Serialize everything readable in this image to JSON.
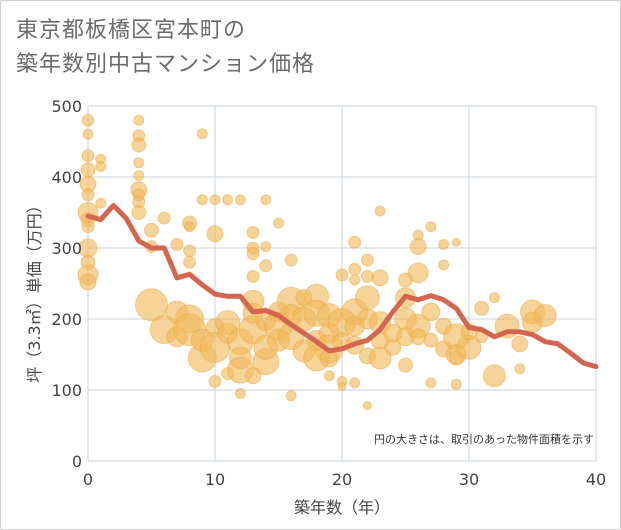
{
  "chart_data": {
    "type": "scatter",
    "title_lines": [
      "東京都板橋区宮本町の",
      "築年数別中古マンション価格"
    ],
    "xlabel": "築年数（年）",
    "ylabel": "坪（3.3㎡）単価（万円）",
    "annotation": "円の大きさは、取引のあった物件面積を示す",
    "xlim": [
      0,
      40
    ],
    "ylim": [
      0,
      500
    ],
    "x_ticks": [
      0,
      10,
      20,
      30,
      40
    ],
    "y_ticks": [
      0,
      100,
      200,
      300,
      400,
      500
    ],
    "grid": true,
    "colors": {
      "bubble": "#f0b85a",
      "bubble_stroke": "#e9a93f",
      "line": "#d4654f",
      "grid": "#c8d3de",
      "axis_text": "#444444"
    },
    "series": [
      {
        "kind": "bubble",
        "points": [
          [
            0,
            480,
            6
          ],
          [
            0,
            460,
            5
          ],
          [
            0,
            430,
            6
          ],
          [
            0,
            410,
            7
          ],
          [
            0,
            390,
            8
          ],
          [
            0,
            375,
            6
          ],
          [
            0,
            350,
            10
          ],
          [
            0,
            340,
            7
          ],
          [
            0,
            330,
            6
          ],
          [
            0,
            300,
            9
          ],
          [
            0,
            280,
            7
          ],
          [
            0,
            262,
            10
          ],
          [
            0,
            252,
            8
          ],
          [
            1,
            425,
            5
          ],
          [
            1,
            415,
            5
          ],
          [
            1,
            363,
            5
          ],
          [
            4,
            480,
            5
          ],
          [
            4,
            458,
            6
          ],
          [
            4,
            445,
            7
          ],
          [
            4,
            420,
            5
          ],
          [
            4,
            402,
            5
          ],
          [
            4,
            382,
            8
          ],
          [
            4,
            375,
            6
          ],
          [
            4,
            365,
            6
          ],
          [
            4,
            350,
            7
          ],
          [
            5,
            325,
            7
          ],
          [
            5,
            302,
            6
          ],
          [
            6,
            342,
            6
          ],
          [
            7,
            305,
            6
          ],
          [
            8,
            335,
            7
          ],
          [
            8,
            330,
            5
          ],
          [
            8,
            296,
            6
          ],
          [
            8,
            280,
            6
          ],
          [
            9,
            461,
            5
          ],
          [
            9,
            368,
            5
          ],
          [
            10,
            368,
            5
          ],
          [
            10,
            320,
            8
          ],
          [
            11,
            368,
            5
          ],
          [
            12,
            368,
            5
          ],
          [
            14,
            368,
            5
          ],
          [
            13,
            322,
            6
          ],
          [
            13,
            300,
            6
          ],
          [
            13,
            292,
            6
          ],
          [
            14,
            302,
            5
          ],
          [
            14,
            275,
            6
          ],
          [
            13,
            260,
            6
          ],
          [
            15,
            335,
            5
          ],
          [
            16,
            283,
            6
          ],
          [
            21,
            308,
            6
          ],
          [
            22,
            283,
            6
          ],
          [
            23,
            352,
            5
          ],
          [
            21,
            270,
            6
          ],
          [
            22,
            260,
            6
          ],
          [
            21,
            255,
            5
          ],
          [
            20,
            262,
            6
          ],
          [
            23,
            258,
            8
          ],
          [
            26,
            318,
            5
          ],
          [
            27,
            330,
            5
          ],
          [
            26,
            302,
            8
          ],
          [
            28,
            305,
            5
          ],
          [
            28,
            276,
            5
          ],
          [
            29,
            308,
            4
          ],
          [
            26,
            265,
            10
          ],
          [
            25,
            255,
            7
          ],
          [
            5,
            220,
            16
          ],
          [
            6,
            185,
            14
          ],
          [
            7,
            210,
            11
          ],
          [
            7,
            175,
            10
          ],
          [
            8,
            200,
            14
          ],
          [
            8,
            185,
            16
          ],
          [
            9,
            145,
            14
          ],
          [
            9,
            170,
            11
          ],
          [
            10,
            188,
            9
          ],
          [
            10,
            160,
            15
          ],
          [
            11,
            195,
            12
          ],
          [
            11,
            180,
            10
          ],
          [
            12,
            168,
            13
          ],
          [
            12,
            145,
            11
          ],
          [
            12,
            128,
            13
          ],
          [
            13,
            185,
            14
          ],
          [
            13,
            225,
            11
          ],
          [
            13,
            208,
            10
          ],
          [
            14,
            140,
            13
          ],
          [
            14,
            160,
            12
          ],
          [
            14,
            198,
            10
          ],
          [
            15,
            190,
            14
          ],
          [
            15,
            170,
            11
          ],
          [
            15,
            210,
            10
          ],
          [
            16,
            225,
            14
          ],
          [
            16,
            205,
            11
          ],
          [
            16,
            175,
            13
          ],
          [
            17,
            200,
            12
          ],
          [
            17,
            155,
            11
          ],
          [
            17,
            230,
            8
          ],
          [
            18,
            232,
            12
          ],
          [
            18,
            208,
            13
          ],
          [
            18,
            170,
            10
          ],
          [
            18,
            145,
            13
          ],
          [
            19,
            205,
            12
          ],
          [
            19,
            180,
            10
          ],
          [
            19,
            158,
            14
          ],
          [
            19,
            145,
            9
          ],
          [
            20,
            195,
            14
          ],
          [
            20,
            168,
            9
          ],
          [
            21,
            210,
            13
          ],
          [
            21,
            190,
            10
          ],
          [
            21,
            163,
            9
          ],
          [
            22,
            230,
            12
          ],
          [
            22,
            200,
            10
          ],
          [
            22,
            148,
            8
          ],
          [
            23,
            195,
            11
          ],
          [
            23,
            170,
            9
          ],
          [
            23,
            145,
            11
          ],
          [
            24,
            160,
            8
          ],
          [
            24,
            180,
            9
          ],
          [
            25,
            200,
            11
          ],
          [
            25,
            175,
            9
          ],
          [
            25,
            230,
            10
          ],
          [
            26,
            190,
            12
          ],
          [
            26,
            175,
            8
          ],
          [
            27,
            170,
            7
          ],
          [
            27,
            210,
            9
          ],
          [
            28,
            190,
            8
          ],
          [
            28,
            158,
            8
          ],
          [
            29,
            175,
            13
          ],
          [
            29,
            150,
            10
          ],
          [
            29,
            145,
            7
          ],
          [
            30,
            160,
            12
          ],
          [
            30,
            182,
            8
          ],
          [
            31,
            215,
            7
          ],
          [
            32,
            230,
            5
          ],
          [
            32,
            120,
            11
          ],
          [
            33,
            190,
            12
          ],
          [
            34,
            165,
            8
          ],
          [
            35,
            210,
            12
          ],
          [
            35,
            195,
            10
          ],
          [
            36,
            205,
            11
          ],
          [
            31,
            175,
            6
          ],
          [
            10,
            112,
            6
          ],
          [
            11,
            123,
            6
          ],
          [
            12,
            95,
            5
          ],
          [
            13,
            120,
            8
          ],
          [
            16,
            92,
            5
          ],
          [
            19,
            120,
            5
          ],
          [
            20,
            112,
            5
          ],
          [
            20,
            105,
            4
          ],
          [
            21,
            110,
            5
          ],
          [
            22,
            78,
            4
          ],
          [
            25,
            135,
            7
          ],
          [
            27,
            110,
            5
          ],
          [
            29,
            108,
            5
          ],
          [
            34,
            130,
            5
          ]
        ]
      },
      {
        "kind": "line",
        "points": [
          [
            0,
            345
          ],
          [
            1,
            340
          ],
          [
            2,
            360
          ],
          [
            3,
            342
          ],
          [
            4,
            310
          ],
          [
            5,
            300
          ],
          [
            6,
            300
          ],
          [
            7,
            258
          ],
          [
            8,
            263
          ],
          [
            9,
            248
          ],
          [
            10,
            235
          ],
          [
            11,
            232
          ],
          [
            12,
            232
          ],
          [
            13,
            210
          ],
          [
            14,
            212
          ],
          [
            15,
            205
          ],
          [
            16,
            192
          ],
          [
            17,
            180
          ],
          [
            18,
            168
          ],
          [
            19,
            155
          ],
          [
            20,
            158
          ],
          [
            21,
            165
          ],
          [
            22,
            170
          ],
          [
            23,
            185
          ],
          [
            24,
            210
          ],
          [
            25,
            232
          ],
          [
            26,
            227
          ],
          [
            27,
            233
          ],
          [
            28,
            227
          ],
          [
            29,
            215
          ],
          [
            30,
            188
          ],
          [
            31,
            185
          ],
          [
            32,
            175
          ],
          [
            33,
            182
          ],
          [
            34,
            182
          ],
          [
            35,
            178
          ],
          [
            36,
            168
          ],
          [
            37,
            165
          ],
          [
            38,
            152
          ],
          [
            39,
            138
          ],
          [
            40,
            133
          ]
        ]
      }
    ]
  }
}
